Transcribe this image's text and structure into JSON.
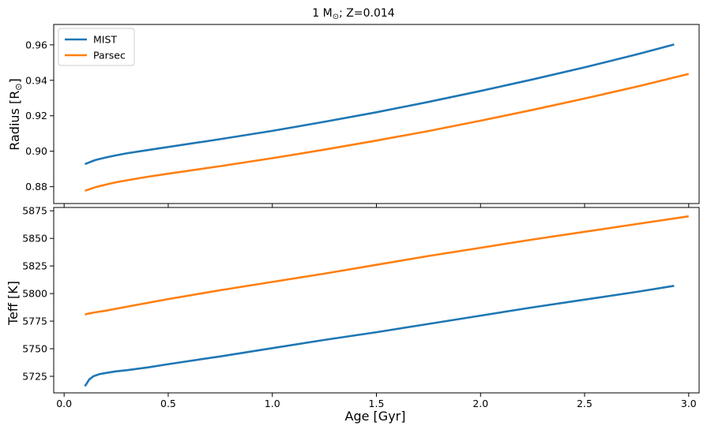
{
  "figure": {
    "title": "1 M",
    "title_sub": "⊙",
    "title_rest": "; Z=0.014"
  },
  "colors": {
    "mist": "#1f77b4",
    "parsec": "#ff7f0e",
    "axes": "#000000",
    "background": "#ffffff"
  },
  "chart_data": [
    {
      "type": "line",
      "panel": "top",
      "xlabel": "",
      "ylabel": "Radius [R",
      "ylabel_sub": "⊙",
      "ylabel_close": "]",
      "xlim": [
        -0.05,
        3.05
      ],
      "ylim": [
        0.8705,
        0.9715
      ],
      "yticks": [
        0.88,
        0.9,
        0.92,
        0.94,
        0.96
      ],
      "ytick_labels": [
        "0.88",
        "0.90",
        "0.92",
        "0.94",
        "0.96"
      ],
      "xticks": [
        0.0,
        0.5,
        1.0,
        1.5,
        2.0,
        2.5,
        3.0
      ],
      "grid": false,
      "legend": "top-left",
      "series": [
        {
          "name": "MIST",
          "color_key": "mist",
          "x": [
            0.1,
            0.12,
            0.15,
            0.2,
            0.25,
            0.3,
            0.4,
            0.5,
            0.75,
            1.0,
            1.25,
            1.5,
            1.75,
            2.0,
            2.25,
            2.5,
            2.75,
            2.93
          ],
          "y": [
            0.8927,
            0.8937,
            0.895,
            0.8965,
            0.8977,
            0.8988,
            0.9006,
            0.9024,
            0.9068,
            0.9115,
            0.9166,
            0.922,
            0.9278,
            0.934,
            0.9405,
            0.9473,
            0.9546,
            0.9602
          ]
        },
        {
          "name": "Parsec",
          "color_key": "parsec",
          "x": [
            0.1,
            0.12,
            0.15,
            0.2,
            0.25,
            0.3,
            0.4,
            0.5,
            0.75,
            1.0,
            1.25,
            1.5,
            1.75,
            2.0,
            2.25,
            2.5,
            2.75,
            3.0
          ],
          "y": [
            0.8777,
            0.8785,
            0.8797,
            0.8812,
            0.8825,
            0.8836,
            0.8856,
            0.8873,
            0.8916,
            0.8961,
            0.9009,
            0.906,
            0.9114,
            0.9172,
            0.9233,
            0.9297,
            0.9364,
            0.9436
          ]
        }
      ]
    },
    {
      "type": "line",
      "panel": "bottom",
      "xlabel": "Age [Gyr]",
      "ylabel": "Teff [K]",
      "xlim": [
        -0.05,
        3.05
      ],
      "ylim": [
        5710,
        5878
      ],
      "yticks": [
        5725,
        5750,
        5775,
        5800,
        5825,
        5850,
        5875
      ],
      "ytick_labels": [
        "5725",
        "5750",
        "5775",
        "5800",
        "5825",
        "5850",
        "5875"
      ],
      "xticks": [
        0.0,
        0.5,
        1.0,
        1.5,
        2.0,
        2.5,
        3.0
      ],
      "xtick_labels": [
        "0.0",
        "0.5",
        "1.0",
        "1.5",
        "2.0",
        "2.5",
        "3.0"
      ],
      "grid": false,
      "series": [
        {
          "name": "MIST",
          "color_key": "mist",
          "x": [
            0.1,
            0.11,
            0.12,
            0.14,
            0.17,
            0.2,
            0.25,
            0.3,
            0.4,
            0.5,
            0.75,
            1.0,
            1.25,
            1.5,
            1.75,
            2.0,
            2.25,
            2.5,
            2.75,
            2.93
          ],
          "y": [
            5716,
            5719,
            5722,
            5725,
            5727,
            5728,
            5729.5,
            5730.5,
            5733,
            5736,
            5743,
            5750.5,
            5758,
            5765,
            5772.5,
            5780,
            5787.5,
            5794.5,
            5801.5,
            5807
          ]
        },
        {
          "name": "Parsec",
          "color_key": "parsec",
          "x": [
            0.1,
            0.12,
            0.15,
            0.2,
            0.3,
            0.4,
            0.5,
            0.75,
            1.0,
            1.25,
            1.5,
            1.75,
            2.0,
            2.25,
            2.5,
            2.75,
            3.0
          ],
          "y": [
            5781,
            5782,
            5783,
            5784.5,
            5788,
            5791.5,
            5795,
            5803,
            5810.5,
            5818,
            5826,
            5834,
            5841.5,
            5849,
            5856,
            5863,
            5870
          ]
        }
      ]
    }
  ]
}
